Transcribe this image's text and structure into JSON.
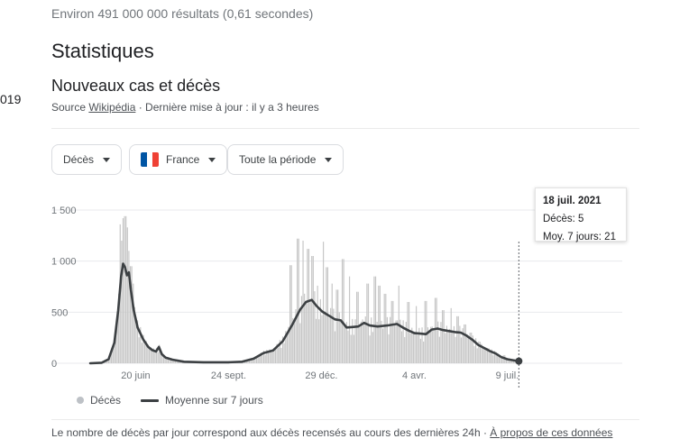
{
  "search": {
    "results_text": "Environ 491 000 000 résultats (0,61 secondes)"
  },
  "page": {
    "section_title": "Statistiques",
    "edge_fragment": "019"
  },
  "card": {
    "title": "Nouveaux cas et décès",
    "source_prefix": "Source ",
    "source_link": "Wikipédia",
    "updated_text": " · Dernière mise à jour : il y a 3 heures"
  },
  "filters": {
    "metric_label": "Décès",
    "country_label": "France",
    "period_label": "Toute la période"
  },
  "flag_colors": [
    "#0055a4",
    "#ffffff",
    "#ef4135"
  ],
  "colors": {
    "bars": "#c6c6c6",
    "line": "#3c4043",
    "grid": "#e8eaed"
  },
  "tooltip": {
    "date": "18 juil. 2021",
    "deaths_text": "Décès: 5",
    "avg_text": "Moy. 7 jours: 21"
  },
  "legend": {
    "bars_label": "Décès",
    "line_label": "Moyenne sur 7 jours"
  },
  "footer": {
    "note": "Le nombre de décès par jour correspond aux décès recensés au cours des dernières 24h",
    "separator": " · ",
    "link": "À propos de ces données"
  },
  "chart_data": {
    "type": "bar",
    "x_tick_labels": [
      "20 juin",
      "24 sept.",
      "29 déc.",
      "4 avr.",
      "9 juil."
    ],
    "y_tick_labels": [
      "0",
      "500",
      "1 000",
      "1 500"
    ],
    "ylim": [
      0,
      1500
    ],
    "grid": true,
    "legend_position": "bottom",
    "x_range_days": [
      -47,
      501
    ],
    "tick_days": [
      0,
      96,
      192,
      288,
      384
    ],
    "series": [
      {
        "name": "Moyenne sur 7 jours",
        "kind": "line",
        "points": [
          [
            -47,
            0
          ],
          [
            -35,
            5
          ],
          [
            -28,
            40
          ],
          [
            -22,
            200
          ],
          [
            -18,
            520
          ],
          [
            -15,
            850
          ],
          [
            -13,
            975
          ],
          [
            -11,
            940
          ],
          [
            -9,
            860
          ],
          [
            -7,
            890
          ],
          [
            -5,
            720
          ],
          [
            -2,
            520
          ],
          [
            2,
            350
          ],
          [
            8,
            230
          ],
          [
            13,
            160
          ],
          [
            17,
            130
          ],
          [
            21,
            115
          ],
          [
            24,
            160
          ],
          [
            27,
            90
          ],
          [
            31,
            55
          ],
          [
            38,
            35
          ],
          [
            50,
            15
          ],
          [
            70,
            10
          ],
          [
            96,
            10
          ],
          [
            110,
            15
          ],
          [
            122,
            45
          ],
          [
            132,
            100
          ],
          [
            142,
            125
          ],
          [
            152,
            215
          ],
          [
            162,
            380
          ],
          [
            170,
            525
          ],
          [
            176,
            600
          ],
          [
            182,
            620
          ],
          [
            187,
            560
          ],
          [
            193,
            505
          ],
          [
            199,
            470
          ],
          [
            206,
            430
          ],
          [
            212,
            420
          ],
          [
            218,
            350
          ],
          [
            224,
            355
          ],
          [
            230,
            360
          ],
          [
            236,
            395
          ],
          [
            242,
            370
          ],
          [
            250,
            360
          ],
          [
            260,
            370
          ],
          [
            270,
            385
          ],
          [
            276,
            350
          ],
          [
            282,
            320
          ],
          [
            288,
            295
          ],
          [
            294,
            290
          ],
          [
            300,
            285
          ],
          [
            306,
            330
          ],
          [
            312,
            340
          ],
          [
            318,
            325
          ],
          [
            324,
            315
          ],
          [
            330,
            305
          ],
          [
            336,
            300
          ],
          [
            342,
            270
          ],
          [
            348,
            230
          ],
          [
            354,
            180
          ],
          [
            360,
            150
          ],
          [
            366,
            120
          ],
          [
            372,
            95
          ],
          [
            378,
            60
          ],
          [
            384,
            40
          ],
          [
            390,
            30
          ],
          [
            396,
            21
          ]
        ]
      },
      {
        "name": "Décès",
        "kind": "bar",
        "bar_spec": {
          "start_day": -46,
          "end_day": 395,
          "step": 1.5,
          "spikes": [
            [
              -16,
              1360
            ],
            [
              -15,
              1200
            ],
            [
              -13,
              1420
            ],
            [
              -11,
              1440
            ],
            [
              -9,
              1330
            ],
            [
              -7,
              1100
            ],
            [
              -5,
              950
            ],
            [
              -3,
              780
            ],
            [
              160,
              960
            ],
            [
              168,
              1220
            ],
            [
              173,
              1200
            ],
            [
              178,
              1120
            ],
            [
              183,
              1050
            ],
            [
              188,
              760
            ],
            [
              194,
              1190
            ],
            [
              198,
              940
            ],
            [
              203,
              780
            ],
            [
              208,
              720
            ],
            [
              214,
              1020
            ],
            [
              221,
              850
            ],
            [
              229,
              700
            ],
            [
              240,
              780
            ],
            [
              247,
              850
            ],
            [
              252,
              760
            ],
            [
              258,
              680
            ],
            [
              265,
              610
            ],
            [
              272,
              760
            ],
            [
              282,
              600
            ],
            [
              290,
              560
            ],
            [
              300,
              610
            ],
            [
              310,
              640
            ],
            [
              318,
              520
            ],
            [
              326,
              540
            ],
            [
              333,
              460
            ],
            [
              340,
              380
            ],
            [
              346,
              300
            ],
            [
              356,
              210
            ],
            [
              363,
              150
            ],
            [
              372,
              110
            ],
            [
              381,
              80
            ]
          ]
        }
      }
    ],
    "highlight_point": {
      "label": "18 juil. 2021",
      "deaths": 5,
      "avg7": 21,
      "day": 396
    }
  }
}
